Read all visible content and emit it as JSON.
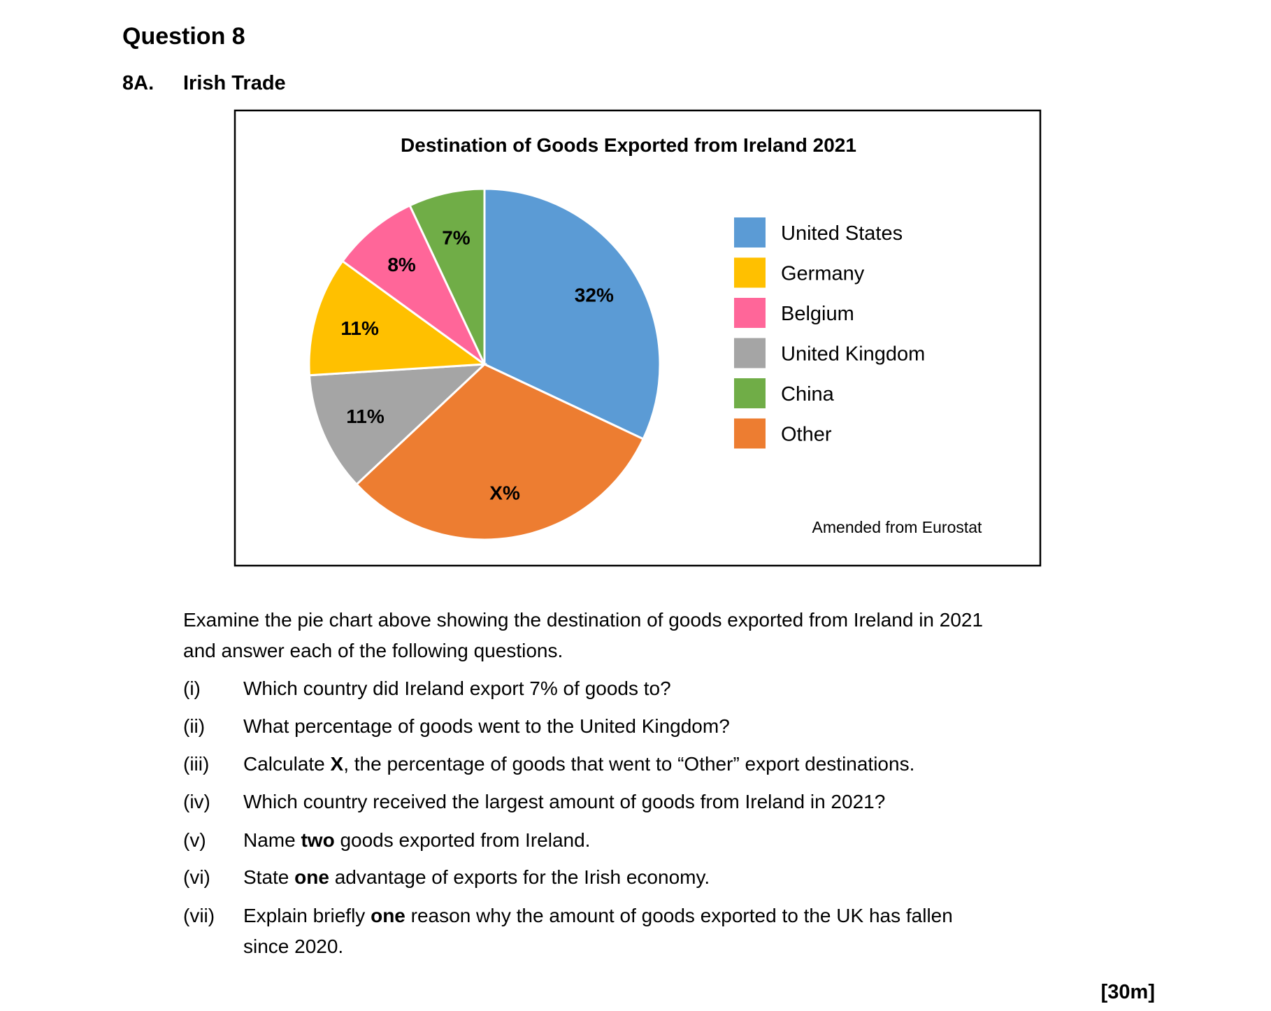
{
  "header": {
    "title": "Question 8",
    "section_number": "8A.",
    "section_title": "Irish Trade"
  },
  "chart_data": {
    "type": "pie",
    "title": "Destination of Goods Exported from Ireland 2021",
    "categories": [
      "United States",
      "Germany",
      "Belgium",
      "United Kingdom",
      "China",
      "Other"
    ],
    "values": [
      32,
      11,
      8,
      11,
      7,
      31
    ],
    "value_labels": [
      "32%",
      "11%",
      "8%",
      "11%",
      "7%",
      "X%"
    ],
    "colors": [
      "#5b9bd5",
      "#ffc000",
      "#ff6699",
      "#a5a5a5",
      "#70ad47",
      "#ed7d31"
    ],
    "legend": "right",
    "source": "Amended from Eurostat"
  },
  "intro": [
    "Examine the pie chart above showing the destination of goods exported from Ireland in 2021",
    "and answer each of the following questions."
  ],
  "questions": [
    {
      "number": "(i)",
      "lines": [
        [
          {
            "text": "Which country did Ireland export 7% of goods to?"
          }
        ]
      ]
    },
    {
      "number": "(ii)",
      "lines": [
        [
          {
            "text": "What percentage of goods went to the United Kingdom?"
          }
        ]
      ]
    },
    {
      "number": "(iii)",
      "lines": [
        [
          {
            "text": "Calculate "
          },
          {
            "text": "X",
            "bold": true
          },
          {
            "text": ", the percentage of goods that went to “Other” export destinations."
          }
        ]
      ]
    },
    {
      "number": "(iv)",
      "lines": [
        [
          {
            "text": "Which country received the largest amount of goods from Ireland in 2021?"
          }
        ]
      ]
    },
    {
      "number": "(v)",
      "lines": [
        [
          {
            "text": "Name "
          },
          {
            "text": "two",
            "bold": true
          },
          {
            "text": " goods exported from Ireland."
          }
        ]
      ]
    },
    {
      "number": "(vi)",
      "lines": [
        [
          {
            "text": "State "
          },
          {
            "text": "one",
            "bold": true
          },
          {
            "text": " advantage of exports for the Irish economy."
          }
        ]
      ]
    },
    {
      "number": "(vii)",
      "lines": [
        [
          {
            "text": "Explain briefly "
          },
          {
            "text": "one",
            "bold": true
          },
          {
            "text": " reason why the amount of goods exported to the UK has fallen"
          }
        ],
        [
          {
            "text": "since 2020."
          }
        ]
      ]
    }
  ],
  "marks": "[30m]"
}
